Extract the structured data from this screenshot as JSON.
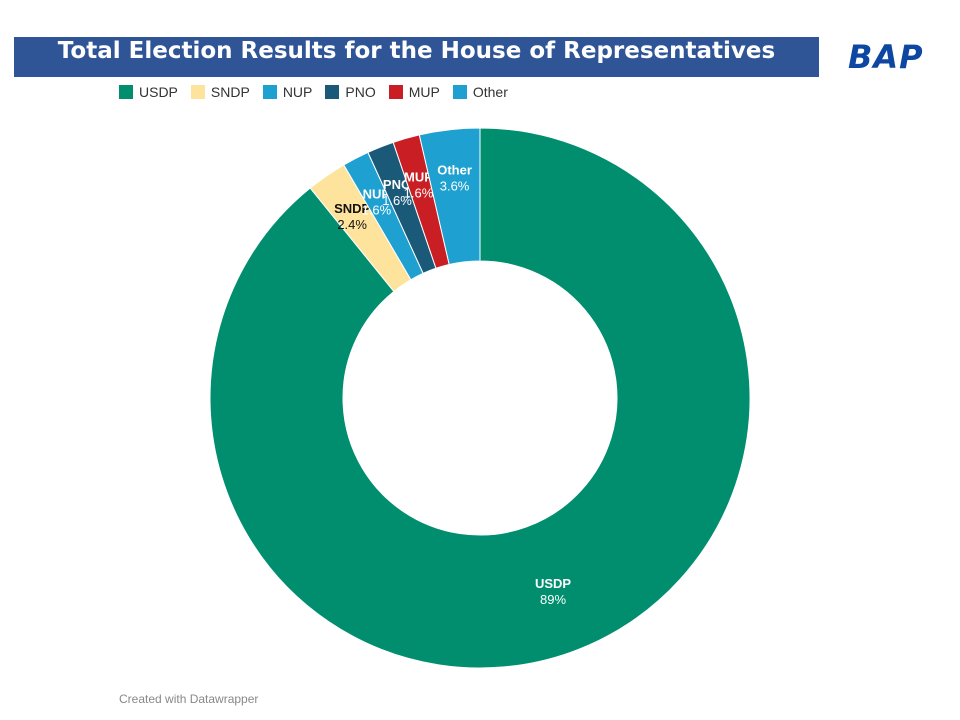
{
  "title": "Total Election Results for the House of Representatives",
  "logo": "BAP",
  "credit": "Created with Datawrapper",
  "chart_data": {
    "type": "pie",
    "donut": true,
    "title": "Total Election Results for the House of Representatives",
    "legend_position": "top-left",
    "slices": [
      {
        "label": "USDP",
        "value": 89,
        "value_label": "89%",
        "color": "#008e6e",
        "text_color": "#ffffff"
      },
      {
        "label": "SNDP",
        "value": 2.4,
        "value_label": "2.4%",
        "color": "#fde39b",
        "text_color": "#111111"
      },
      {
        "label": "NUP",
        "value": 1.6,
        "value_label": "1.6%",
        "color": "#1ea1d0",
        "text_color": "#ffffff"
      },
      {
        "label": "PNO",
        "value": 1.6,
        "value_label": "1.6%",
        "color": "#1a5a78",
        "text_color": "#ffffff"
      },
      {
        "label": "MUP",
        "value": 1.6,
        "value_label": "1.6%",
        "color": "#c91f24",
        "text_color": "#ffffff"
      },
      {
        "label": "Other",
        "value": 3.6,
        "value_label": "3.6%",
        "color": "#1ea1d0",
        "text_color": "#ffffff"
      }
    ]
  }
}
